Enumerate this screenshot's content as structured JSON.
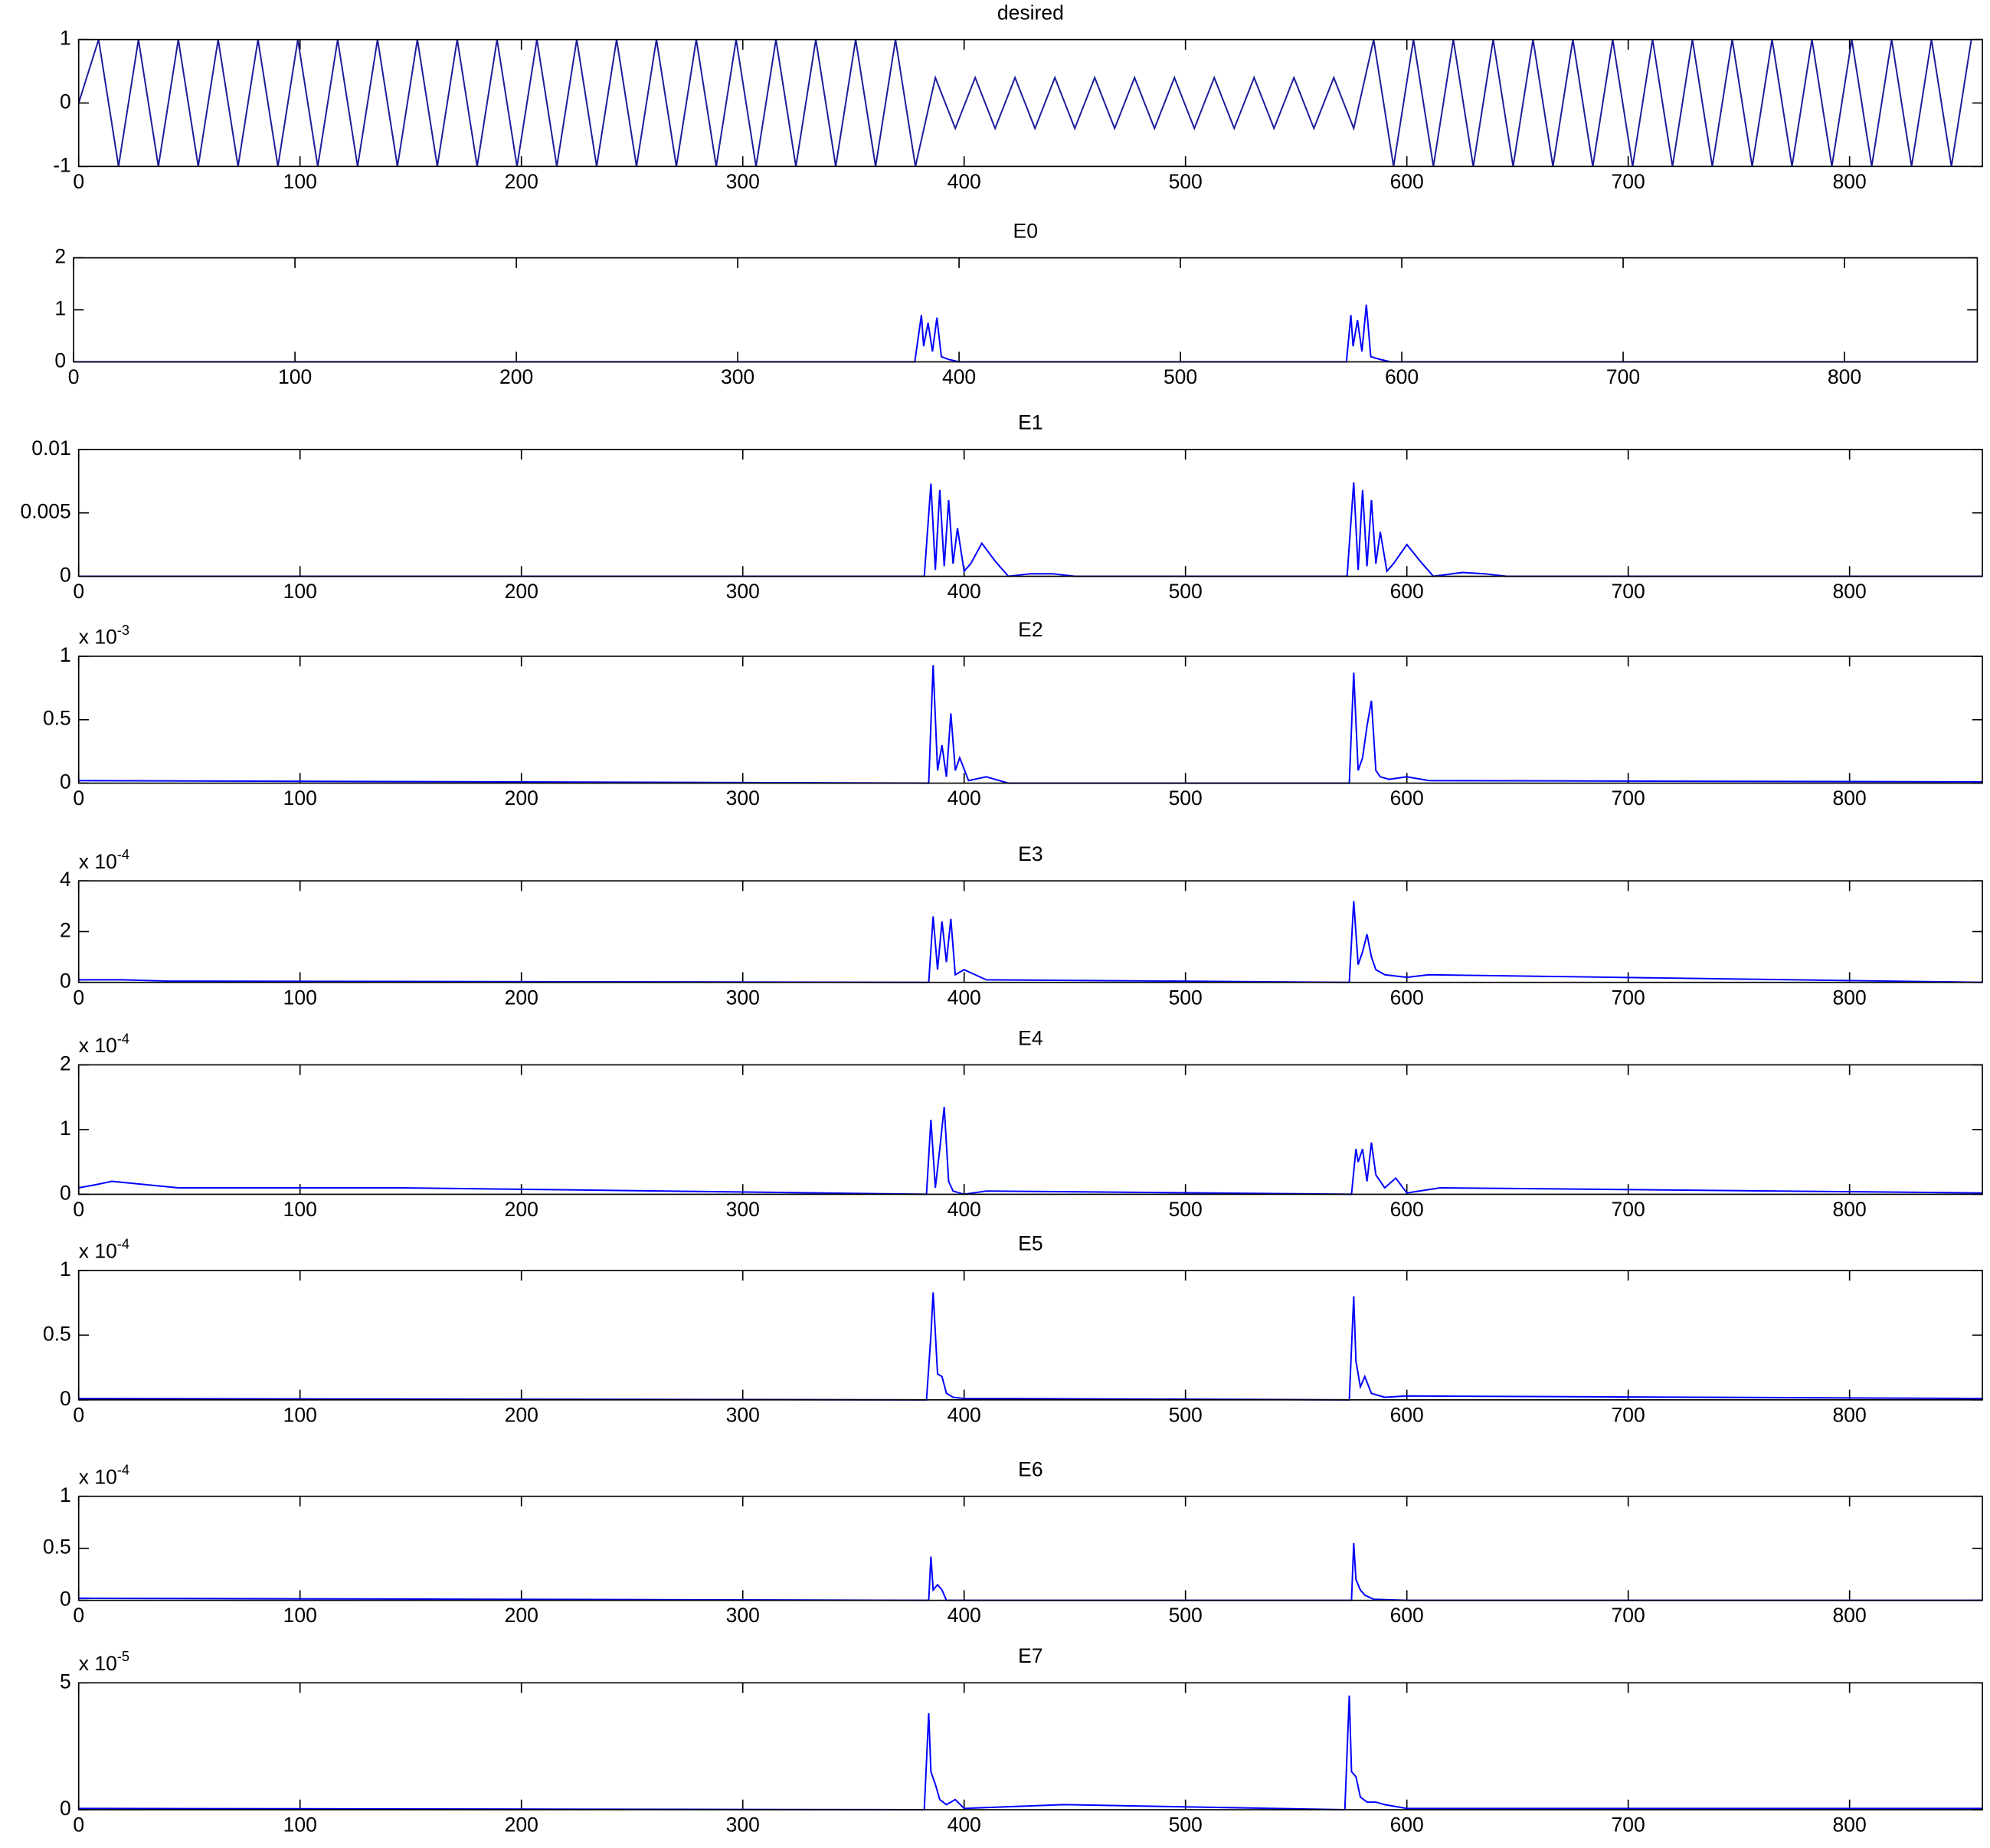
{
  "chart_data": [
    {
      "type": "line",
      "title": "desired",
      "color": "#1c1c9c",
      "xlim": [
        0,
        860
      ],
      "xticks": [
        0,
        100,
        200,
        300,
        400,
        500,
        600,
        700,
        800
      ],
      "ylim": [
        -1,
        1
      ],
      "yticks": [
        -1,
        0,
        1
      ],
      "x": [
        0,
        9,
        18,
        27,
        36,
        45,
        54,
        63,
        72,
        81,
        90,
        99,
        108,
        117,
        126,
        135,
        144,
        153,
        162,
        171,
        180,
        189,
        198,
        207,
        216,
        225,
        234,
        243,
        252,
        261,
        270,
        279,
        288,
        297,
        306,
        315,
        324,
        333,
        342,
        351,
        360,
        369,
        378,
        387,
        396,
        405,
        414,
        423,
        432,
        441,
        450,
        459,
        468,
        477,
        486,
        495,
        504,
        513,
        522,
        531,
        540,
        549,
        558,
        567,
        576,
        585,
        594,
        603,
        612,
        621,
        630,
        639,
        648,
        657,
        666,
        675,
        684,
        693,
        702,
        711,
        720,
        729,
        738,
        747,
        756,
        765,
        774,
        783,
        792,
        801,
        810,
        819,
        828,
        837,
        846,
        855
      ],
      "values": [
        0,
        1,
        -1,
        1,
        -1,
        1,
        -1,
        1,
        -1,
        1,
        -1,
        1,
        -1,
        1,
        -1,
        1,
        -1,
        1,
        -1,
        1,
        -1,
        1,
        -1,
        1,
        -1,
        1,
        -1,
        1,
        -1,
        1,
        -1,
        1,
        -1,
        1,
        -1,
        1,
        -1,
        1,
        -1,
        1,
        -1,
        1,
        -1,
        0.4,
        -0.4,
        0.4,
        -0.4,
        0.4,
        -0.4,
        0.4,
        -0.4,
        0.4,
        -0.4,
        0.4,
        -0.4,
        0.4,
        -0.4,
        0.4,
        -0.4,
        0.4,
        -0.4,
        0.4,
        -0.4,
        0.4,
        -0.4,
        1,
        -1,
        1,
        -1,
        1,
        -1,
        1,
        -1,
        1,
        -1,
        1,
        -1,
        1,
        -1,
        1,
        -1,
        1,
        -1,
        1,
        -1,
        1,
        -1,
        1,
        -1,
        1,
        -1,
        1,
        -1,
        1,
        -1,
        1
      ]
    },
    {
      "type": "line",
      "title": "E0",
      "color": "#0000ff",
      "xlim": [
        0,
        860
      ],
      "xticks": [
        0,
        100,
        200,
        300,
        400,
        500,
        600,
        700,
        800
      ],
      "ylim": [
        0,
        2
      ],
      "yticks": [
        0,
        1,
        2
      ],
      "x": [
        0,
        380,
        383,
        384,
        386,
        388,
        390,
        392,
        395,
        400,
        575,
        577,
        578,
        580,
        582,
        584,
        586,
        590,
        595,
        860
      ],
      "values": [
        0,
        0,
        0.9,
        0.3,
        0.75,
        0.2,
        0.85,
        0.1,
        0.05,
        0,
        0,
        0.9,
        0.3,
        0.8,
        0.2,
        1.1,
        0.1,
        0.05,
        0,
        0
      ]
    },
    {
      "type": "line",
      "title": "E1",
      "color": "#0000ff",
      "xlim": [
        0,
        860
      ],
      "xticks": [
        0,
        100,
        200,
        300,
        400,
        500,
        600,
        700,
        800
      ],
      "ylim": [
        0,
        0.01
      ],
      "yticks": [
        0,
        0.005,
        0.01
      ],
      "x": [
        0,
        382,
        385,
        387,
        389,
        391,
        393,
        395,
        397,
        400,
        403,
        408,
        414,
        420,
        430,
        440,
        450,
        573,
        576,
        578,
        580,
        582,
        584,
        586,
        588,
        591,
        594,
        600,
        606,
        612,
        625,
        635,
        645,
        860
      ],
      "values": [
        0,
        0,
        0.0073,
        0.0005,
        0.0068,
        0.0008,
        0.006,
        0.001,
        0.0038,
        0.0004,
        0.001,
        0.0026,
        0.0012,
        0,
        0.0002,
        0.0002,
        0,
        0,
        0.0074,
        0.0005,
        0.0068,
        0.0008,
        0.006,
        0.001,
        0.0035,
        0.0004,
        0.001,
        0.0025,
        0.0012,
        0,
        0.0003,
        0.0002,
        0,
        0
      ]
    },
    {
      "type": "line",
      "title": "E2",
      "color": "#0000ff",
      "y_multiplier": "x 10",
      "y_exponent": "-3",
      "xlim": [
        0,
        860
      ],
      "xticks": [
        0,
        100,
        200,
        300,
        400,
        500,
        600,
        700,
        800
      ],
      "ylim": [
        0,
        1
      ],
      "yticks": [
        0,
        0.5,
        1
      ],
      "x": [
        0,
        384,
        386,
        388,
        390,
        392,
        394,
        396,
        398,
        402,
        410,
        420,
        574,
        576,
        578,
        580,
        582,
        584,
        586,
        588,
        592,
        600,
        610,
        860
      ],
      "values": [
        0.02,
        0,
        0.93,
        0.1,
        0.3,
        0.05,
        0.55,
        0.1,
        0.2,
        0.02,
        0.05,
        0,
        0,
        0.87,
        0.1,
        0.2,
        0.45,
        0.65,
        0.1,
        0.05,
        0.03,
        0.05,
        0.02,
        0.01
      ]
    },
    {
      "type": "line",
      "title": "E3",
      "color": "#0000ff",
      "y_multiplier": "x 10",
      "y_exponent": "-4",
      "xlim": [
        0,
        860
      ],
      "xticks": [
        0,
        100,
        200,
        300,
        400,
        500,
        600,
        700,
        800
      ],
      "ylim": [
        0,
        4
      ],
      "yticks": [
        0,
        2,
        4
      ],
      "x": [
        0,
        20,
        40,
        384,
        386,
        388,
        390,
        392,
        394,
        396,
        400,
        410,
        574,
        576,
        578,
        580,
        582,
        584,
        586,
        590,
        600,
        610,
        860
      ],
      "values": [
        0.1,
        0.1,
        0.05,
        0,
        2.6,
        0.5,
        2.4,
        0.8,
        2.5,
        0.3,
        0.5,
        0.1,
        0,
        3.2,
        0.7,
        1.2,
        1.9,
        1.0,
        0.5,
        0.3,
        0.2,
        0.3,
        0
      ]
    },
    {
      "type": "line",
      "title": "E4",
      "color": "#0000ff",
      "y_multiplier": "x 10",
      "y_exponent": "-4",
      "xlim": [
        0,
        860
      ],
      "xticks": [
        0,
        100,
        200,
        300,
        400,
        500,
        600,
        700,
        800
      ],
      "ylim": [
        0,
        2
      ],
      "yticks": [
        0,
        1,
        2
      ],
      "x": [
        0,
        8,
        15,
        45,
        90,
        145,
        383,
        385,
        387,
        389,
        391,
        393,
        395,
        400,
        410,
        575,
        577,
        578,
        580,
        582,
        584,
        586,
        590,
        595,
        600,
        615,
        860
      ],
      "values": [
        0.1,
        0.15,
        0.2,
        0.1,
        0.1,
        0.1,
        0,
        1.15,
        0.1,
        0.7,
        1.35,
        0.2,
        0.05,
        0,
        0.05,
        0,
        0.7,
        0.5,
        0.7,
        0.2,
        0.8,
        0.3,
        0.1,
        0.25,
        0.02,
        0.1,
        0.02
      ]
    },
    {
      "type": "line",
      "title": "E5",
      "color": "#0000ff",
      "y_multiplier": "x 10",
      "y_exponent": "-4",
      "xlim": [
        0,
        860
      ],
      "xticks": [
        0,
        100,
        200,
        300,
        400,
        500,
        600,
        700,
        800
      ],
      "ylim": [
        0,
        1
      ],
      "yticks": [
        0,
        0.5,
        1
      ],
      "x": [
        0,
        383,
        385,
        386,
        388,
        390,
        392,
        395,
        400,
        420,
        574,
        576,
        577,
        579,
        581,
        584,
        590,
        600,
        860
      ],
      "values": [
        0.01,
        0,
        0.5,
        0.83,
        0.2,
        0.18,
        0.05,
        0.02,
        0.01,
        0.01,
        0,
        0.8,
        0.3,
        0.1,
        0.18,
        0.05,
        0.02,
        0.03,
        0.01
      ]
    },
    {
      "type": "line",
      "title": "E6",
      "color": "#0000ff",
      "y_multiplier": "x 10",
      "y_exponent": "-4",
      "xlim": [
        0,
        860
      ],
      "xticks": [
        0,
        100,
        200,
        300,
        400,
        500,
        600,
        700,
        800
      ],
      "ylim": [
        0,
        1
      ],
      "yticks": [
        0,
        0.5,
        1
      ],
      "x": [
        0,
        384,
        385,
        386,
        388,
        390,
        392,
        400,
        575,
        576,
        577,
        579,
        581,
        585,
        600,
        860
      ],
      "values": [
        0.02,
        0,
        0.42,
        0.1,
        0.15,
        0.1,
        0,
        0,
        0,
        0.55,
        0.2,
        0.1,
        0.05,
        0.01,
        0,
        0
      ]
    },
    {
      "type": "line",
      "title": "E7",
      "color": "#0000ff",
      "y_multiplier": "x 10",
      "y_exponent": "-5",
      "xlim": [
        0,
        860
      ],
      "xticks": [
        0,
        100,
        200,
        300,
        400,
        500,
        600,
        700,
        800
      ],
      "ylim": [
        0,
        5
      ],
      "yticks": [
        0,
        5
      ],
      "x": [
        0,
        382,
        384,
        385,
        387,
        389,
        392,
        396,
        400,
        445,
        572,
        574,
        575,
        577,
        579,
        582,
        586,
        590,
        600,
        860
      ],
      "values": [
        0.05,
        0,
        3.8,
        1.5,
        1.0,
        0.4,
        0.2,
        0.4,
        0.05,
        0.2,
        0,
        4.5,
        1.5,
        1.3,
        0.5,
        0.3,
        0.3,
        0.2,
        0.05,
        0.05
      ]
    }
  ]
}
